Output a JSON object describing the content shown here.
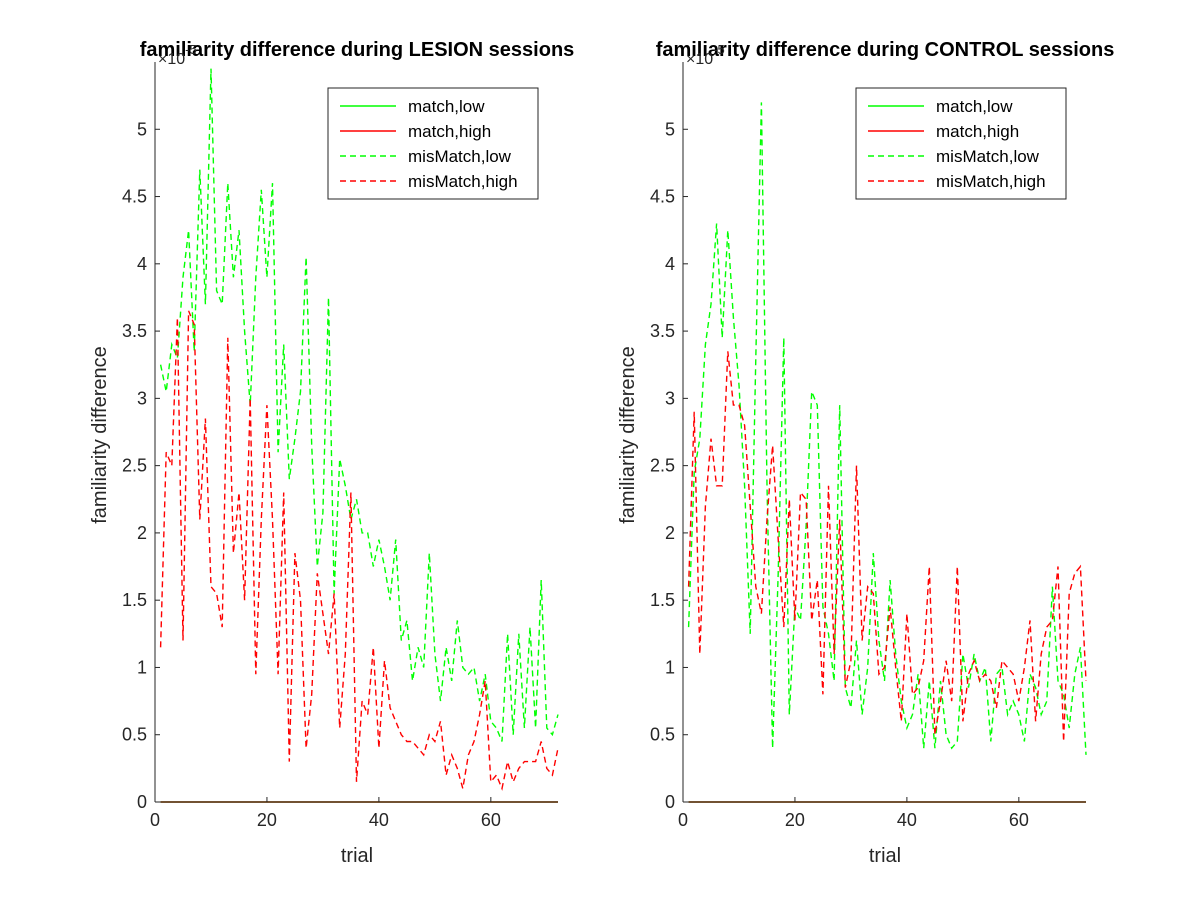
{
  "chart_data": [
    {
      "type": "line",
      "title": "familiarity difference during LESION sessions",
      "xlabel": "trial",
      "ylabel": "familiarity difference",
      "y_exponent_label": "×10",
      "y_exponent": "-5",
      "xlim": [
        0,
        72
      ],
      "ylim": [
        0,
        5.5
      ],
      "y_scale_factor": "1e-5",
      "xticks": [
        "0",
        "20",
        "40",
        "60"
      ],
      "yticks": [
        "0",
        "0.5",
        "1",
        "1.5",
        "2",
        "2.5",
        "3",
        "3.5",
        "4",
        "4.5",
        "5"
      ],
      "grid": false,
      "legend": {
        "placement": "top-right",
        "entries": [
          "match,low",
          "match,high",
          "misMatch,low",
          "misMatch,high"
        ]
      },
      "series": [
        {
          "name": "match,low",
          "color": "#00ff00",
          "style": "solid",
          "x": [
            1,
            72
          ],
          "y": [
            0,
            0
          ]
        },
        {
          "name": "match,high",
          "color": "#ff0000",
          "style": "solid",
          "x": [
            1,
            72
          ],
          "y": [
            0,
            0
          ]
        },
        {
          "name": "misMatch,low",
          "color": "#00ff00",
          "style": "dashed",
          "x": [
            1,
            2,
            3,
            4,
            5,
            6,
            7,
            8,
            9,
            10,
            11,
            12,
            13,
            14,
            15,
            16,
            17,
            18,
            19,
            20,
            21,
            22,
            23,
            24,
            25,
            26,
            27,
            28,
            29,
            30,
            31,
            32,
            33,
            34,
            35,
            36,
            37,
            38,
            39,
            40,
            41,
            42,
            43,
            44,
            45,
            46,
            47,
            48,
            49,
            50,
            51,
            52,
            53,
            54,
            55,
            56,
            57,
            58,
            59,
            60,
            61,
            62,
            63,
            64,
            65,
            66,
            67,
            68,
            69,
            70,
            71,
            72
          ],
          "y": [
            3.25,
            3.05,
            3.4,
            3.3,
            3.9,
            4.25,
            3.35,
            4.7,
            3.7,
            5.45,
            3.8,
            3.7,
            4.6,
            3.9,
            4.25,
            3.5,
            2.95,
            3.9,
            4.55,
            3.9,
            4.6,
            2.6,
            3.4,
            2.4,
            2.7,
            3.05,
            4.05,
            2.65,
            1.75,
            2.15,
            3.75,
            1.55,
            2.55,
            2.35,
            2.1,
            2.25,
            2.0,
            2.0,
            1.75,
            1.95,
            1.75,
            1.5,
            1.95,
            1.2,
            1.35,
            0.9,
            1.15,
            1.0,
            1.85,
            1.1,
            0.75,
            1.15,
            0.9,
            1.35,
            1.0,
            0.95,
            1.0,
            0.75,
            0.95,
            0.6,
            0.55,
            0.45,
            1.25,
            0.5,
            1.25,
            0.55,
            1.3,
            0.55,
            1.65,
            0.55,
            0.5,
            0.65
          ]
        },
        {
          "name": "misMatch,high",
          "color": "#ff0000",
          "style": "dashed",
          "x": [
            1,
            2,
            3,
            4,
            5,
            6,
            7,
            8,
            9,
            10,
            11,
            12,
            13,
            14,
            15,
            16,
            17,
            18,
            19,
            20,
            21,
            22,
            23,
            24,
            25,
            26,
            27,
            28,
            29,
            30,
            31,
            32,
            33,
            34,
            35,
            36,
            37,
            38,
            39,
            40,
            41,
            42,
            43,
            44,
            45,
            46,
            47,
            48,
            49,
            50,
            51,
            52,
            53,
            54,
            55,
            56,
            57,
            58,
            59,
            60,
            61,
            62,
            63,
            64,
            65,
            66,
            67,
            68,
            69,
            70,
            71,
            72
          ],
          "y": [
            1.15,
            2.6,
            2.5,
            3.6,
            1.2,
            3.65,
            3.55,
            2.1,
            2.85,
            1.6,
            1.55,
            1.3,
            3.45,
            1.85,
            2.3,
            1.5,
            3.0,
            0.95,
            2.1,
            2.95,
            2.1,
            0.95,
            2.3,
            0.3,
            1.85,
            1.5,
            0.4,
            0.8,
            1.7,
            1.4,
            1.1,
            1.55,
            0.55,
            1.1,
            2.3,
            0.15,
            0.75,
            0.65,
            1.15,
            0.4,
            1.05,
            0.7,
            0.6,
            0.5,
            0.45,
            0.45,
            0.4,
            0.35,
            0.5,
            0.45,
            0.6,
            0.2,
            0.35,
            0.25,
            0.1,
            0.35,
            0.45,
            0.65,
            0.9,
            0.15,
            0.2,
            0.1,
            0.3,
            0.15,
            0.25,
            0.3,
            0.3,
            0.3,
            0.45,
            0.25,
            0.2,
            0.4
          ]
        }
      ]
    },
    {
      "type": "line",
      "title": "familiarity difference during CONTROL sessions",
      "xlabel": "trial",
      "ylabel": "familiarity difference",
      "y_exponent_label": "×10",
      "y_exponent": "-5",
      "xlim": [
        0,
        72
      ],
      "ylim": [
        0,
        5.5
      ],
      "y_scale_factor": "1e-5",
      "xticks": [
        "0",
        "20",
        "40",
        "60"
      ],
      "yticks": [
        "0",
        "0.5",
        "1",
        "1.5",
        "2",
        "2.5",
        "3",
        "3.5",
        "4",
        "4.5",
        "5"
      ],
      "grid": false,
      "legend": {
        "placement": "top-right",
        "entries": [
          "match,low",
          "match,high",
          "misMatch,low",
          "misMatch,high"
        ]
      },
      "series": [
        {
          "name": "match,low",
          "color": "#00ff00",
          "style": "solid",
          "x": [
            1,
            72
          ],
          "y": [
            0,
            0
          ]
        },
        {
          "name": "match,high",
          "color": "#ff0000",
          "style": "solid",
          "x": [
            1,
            72
          ],
          "y": [
            0,
            0
          ]
        },
        {
          "name": "misMatch,low",
          "color": "#00ff00",
          "style": "dashed",
          "x": [
            1,
            2,
            3,
            4,
            5,
            6,
            7,
            8,
            9,
            10,
            11,
            12,
            13,
            14,
            15,
            16,
            17,
            18,
            19,
            20,
            21,
            22,
            23,
            24,
            25,
            26,
            27,
            28,
            29,
            30,
            31,
            32,
            33,
            34,
            35,
            36,
            37,
            38,
            39,
            40,
            41,
            42,
            43,
            44,
            45,
            46,
            47,
            48,
            49,
            50,
            51,
            52,
            53,
            54,
            55,
            56,
            57,
            58,
            59,
            60,
            61,
            62,
            63,
            64,
            65,
            66,
            67,
            68,
            69,
            70,
            71,
            72
          ],
          "y": [
            1.3,
            2.45,
            2.7,
            3.4,
            3.7,
            4.3,
            3.45,
            4.25,
            3.6,
            3.1,
            2.35,
            1.25,
            3.3,
            5.2,
            2.35,
            0.4,
            1.7,
            3.45,
            0.65,
            1.45,
            1.35,
            2.05,
            3.05,
            2.95,
            1.45,
            1.25,
            0.9,
            2.95,
            0.85,
            0.7,
            1.2,
            0.65,
            1.0,
            1.85,
            1.2,
            0.9,
            1.65,
            1.1,
            0.75,
            0.55,
            0.65,
            0.95,
            0.4,
            0.9,
            0.4,
            0.9,
            0.5,
            0.4,
            0.45,
            1.1,
            0.85,
            1.1,
            0.9,
            1.0,
            0.45,
            0.95,
            1.0,
            0.65,
            0.75,
            0.65,
            0.45,
            0.95,
            0.85,
            0.65,
            0.75,
            1.6,
            0.9,
            0.8,
            0.55,
            0.95,
            1.15,
            0.35
          ]
        },
        {
          "name": "misMatch,high",
          "color": "#ff0000",
          "style": "dashed",
          "x": [
            1,
            2,
            3,
            4,
            5,
            6,
            7,
            8,
            9,
            10,
            11,
            12,
            13,
            14,
            15,
            16,
            17,
            18,
            19,
            20,
            21,
            22,
            23,
            24,
            25,
            26,
            27,
            28,
            29,
            30,
            31,
            32,
            33,
            34,
            35,
            36,
            37,
            38,
            39,
            40,
            41,
            42,
            43,
            44,
            45,
            46,
            47,
            48,
            49,
            50,
            51,
            52,
            53,
            54,
            55,
            56,
            57,
            58,
            59,
            60,
            61,
            62,
            63,
            64,
            65,
            66,
            67,
            68,
            69,
            70,
            71,
            72
          ],
          "y": [
            1.6,
            2.9,
            1.1,
            2.2,
            2.7,
            2.35,
            2.35,
            3.35,
            2.95,
            2.95,
            2.8,
            2.2,
            1.6,
            1.4,
            2.1,
            2.65,
            1.95,
            1.3,
            2.25,
            1.35,
            2.3,
            2.25,
            1.35,
            1.65,
            0.8,
            2.35,
            1.1,
            2.1,
            0.85,
            1.05,
            2.5,
            1.2,
            1.6,
            1.55,
            0.95,
            1.0,
            1.45,
            1.0,
            0.6,
            1.4,
            0.8,
            0.85,
            1.05,
            1.75,
            0.5,
            0.75,
            1.05,
            0.75,
            1.75,
            0.6,
            0.95,
            1.05,
            0.9,
            0.95,
            0.9,
            0.7,
            1.05,
            1.0,
            0.95,
            0.75,
            1.0,
            1.35,
            0.6,
            1.1,
            1.3,
            1.35,
            1.75,
            0.45,
            1.55,
            1.7,
            1.75,
            0.9
          ]
        }
      ]
    }
  ]
}
